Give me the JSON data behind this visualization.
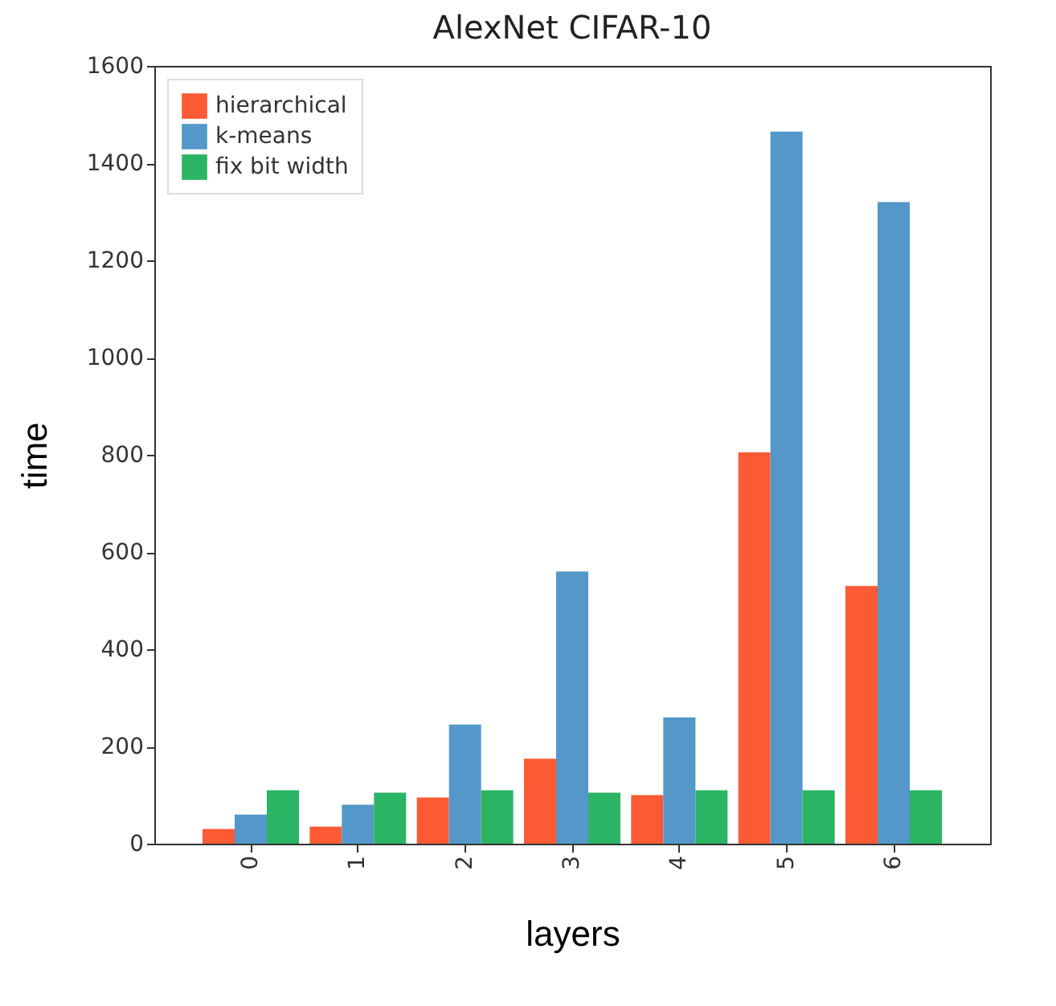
{
  "chart_data": {
    "type": "bar",
    "title": "AlexNet CIFAR-10",
    "xlabel": "layers",
    "ylabel": "time",
    "categories": [
      "0",
      "1",
      "2",
      "3",
      "4",
      "5",
      "6"
    ],
    "series": [
      {
        "name": "hierarchical",
        "color": "#fc5a34",
        "values": [
          30,
          35,
          95,
          175,
          100,
          805,
          530
        ]
      },
      {
        "name": "k-means",
        "color": "#5398c8",
        "values": [
          60,
          80,
          245,
          560,
          260,
          1465,
          1320
        ]
      },
      {
        "name": "fix bit width",
        "color": "#2bb463",
        "values": [
          110,
          105,
          110,
          105,
          110,
          110,
          110
        ]
      }
    ],
    "ylim": [
      0,
      1600
    ],
    "yticks": [
      0,
      200,
      400,
      600,
      800,
      1000,
      1200,
      1400,
      1600
    ],
    "legend": "top left"
  }
}
